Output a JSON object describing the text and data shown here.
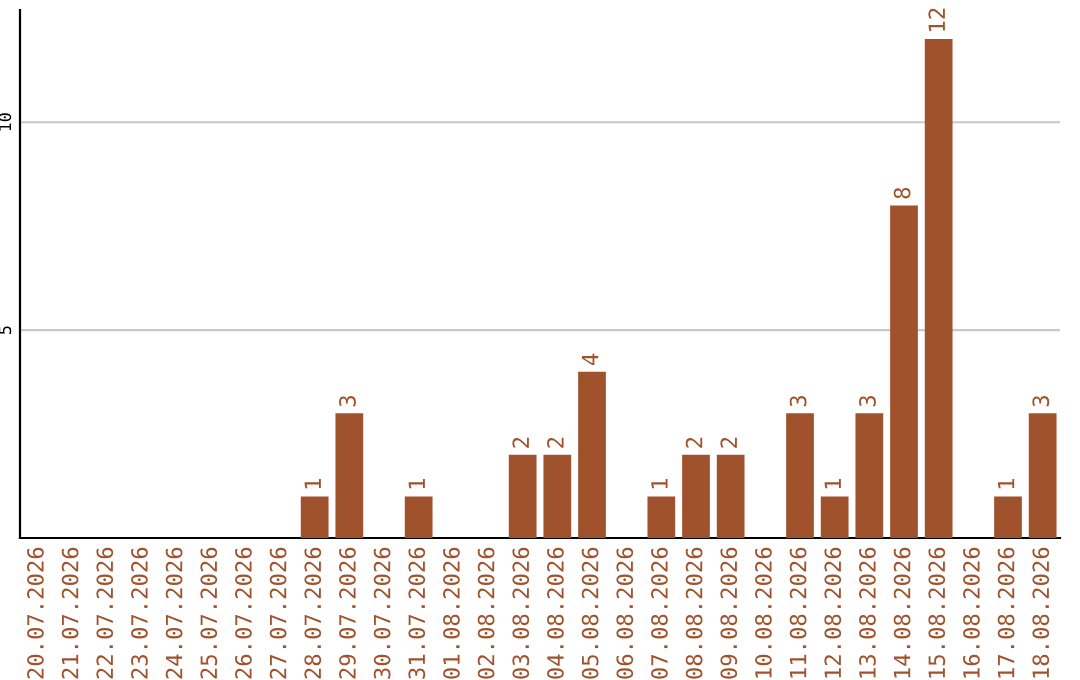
{
  "chart_data": {
    "type": "bar",
    "categories": [
      "20.07.2026",
      "21.07.2026",
      "22.07.2026",
      "23.07.2026",
      "24.07.2026",
      "25.07.2026",
      "26.07.2026",
      "27.07.2026",
      "28.07.2026",
      "29.07.2026",
      "30.07.2026",
      "31.07.2026",
      "01.08.2026",
      "02.08.2026",
      "03.08.2026",
      "04.08.2026",
      "05.08.2026",
      "06.08.2026",
      "07.08.2026",
      "08.08.2026",
      "09.08.2026",
      "10.08.2026",
      "11.08.2026",
      "12.08.2026",
      "13.08.2026",
      "14.08.2026",
      "15.08.2026",
      "16.08.2026",
      "17.08.2026",
      "18.08.2026"
    ],
    "values": [
      0,
      0,
      0,
      0,
      0,
      0,
      0,
      0,
      1,
      3,
      0,
      1,
      0,
      0,
      2,
      2,
      4,
      0,
      1,
      2,
      2,
      0,
      3,
      1,
      3,
      8,
      12,
      0,
      1,
      3
    ],
    "value_labels": [
      null,
      null,
      null,
      null,
      null,
      null,
      null,
      null,
      "1",
      "3",
      null,
      "1",
      null,
      null,
      "2",
      "2",
      "4",
      null,
      "1",
      "2",
      "2",
      null,
      "3",
      "1",
      "3",
      "8",
      "12",
      null,
      "1",
      "3"
    ],
    "color": "#a0522d",
    "ylim": [
      0,
      12.7
    ],
    "yticks": [
      5,
      10
    ],
    "grid": "y"
  }
}
